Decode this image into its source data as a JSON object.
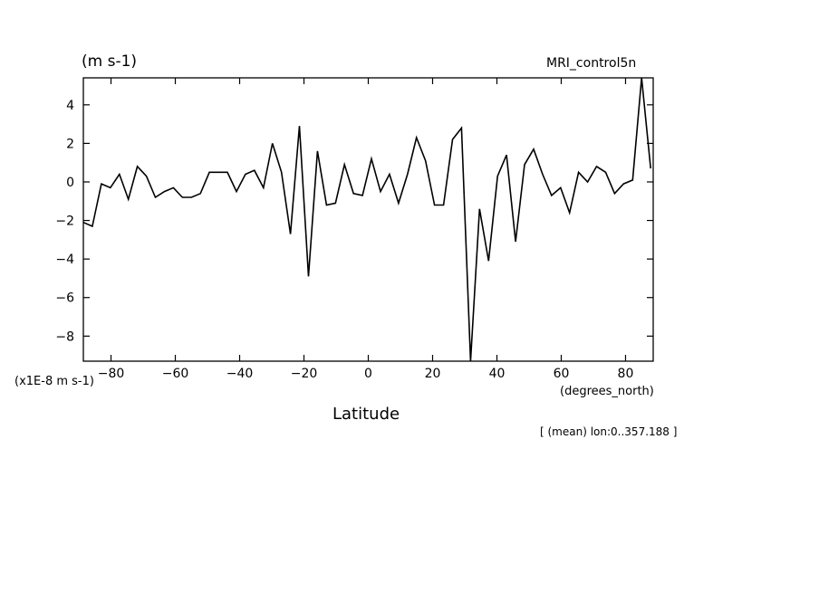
{
  "chart_data": {
    "type": "line",
    "title": "MRI_control5n",
    "ylabel": "(m s-1)",
    "yscale_note": "(x1E-8 m s-1)",
    "xlabel": "Latitude",
    "xunits": "(degrees_north)",
    "annotation": "[ (mean) lon:0..357.188 ]",
    "xlim": [
      -88.6,
      88.6
    ],
    "ylim": [
      -9.3,
      5.4
    ],
    "xticks": [
      -80,
      -60,
      -40,
      -20,
      0,
      20,
      40,
      60,
      80
    ],
    "yticks": [
      4,
      2,
      0,
      -2,
      -4,
      -6,
      -8
    ],
    "grid": false,
    "legend": "none",
    "line_color": "#000000",
    "series": [
      {
        "x": [
          -88.6,
          -85.8,
          -83.0,
          -80.2,
          -77.4,
          -74.6,
          -71.8,
          -69.0,
          -66.2,
          -63.4,
          -60.6,
          -57.8,
          -55.0,
          -52.2,
          -49.4,
          -46.6,
          -43.8,
          -41.0,
          -38.2,
          -35.4,
          -32.6,
          -29.8,
          -27.0,
          -24.2,
          -21.4,
          -18.6,
          -15.8,
          -13.0,
          -10.2,
          -7.4,
          -4.6,
          -1.8,
          1.0,
          3.8,
          6.6,
          9.4,
          12.2,
          15.0,
          17.8,
          20.6,
          23.4,
          26.2,
          29.0,
          31.8,
          34.6,
          37.4,
          40.2,
          43.0,
          45.8,
          48.6,
          51.4,
          54.2,
          57.0,
          59.8,
          62.6,
          65.4,
          68.2,
          71.0,
          73.8,
          76.6,
          79.4,
          82.2,
          85.0,
          87.8
        ],
        "values": [
          -2.1,
          -2.3,
          -0.1,
          -0.3,
          0.4,
          -0.9,
          0.8,
          0.3,
          -0.8,
          -0.5,
          -0.3,
          -0.8,
          -0.8,
          -0.6,
          0.5,
          0.5,
          0.5,
          -0.5,
          0.4,
          0.6,
          -0.3,
          2.0,
          0.5,
          -2.7,
          2.9,
          -4.9,
          1.6,
          -1.2,
          -1.1,
          0.9,
          -0.6,
          -0.7,
          1.2,
          -0.5,
          0.4,
          -1.1,
          0.4,
          2.3,
          1.1,
          -1.2,
          -1.2,
          2.2,
          2.8,
          -9.3,
          -1.4,
          -4.1,
          0.3,
          1.4,
          -3.1,
          0.9,
          1.7,
          0.4,
          -0.7,
          -0.3,
          -1.6,
          0.5,
          0.0,
          0.8,
          0.5,
          -0.6,
          -0.1,
          0.1,
          5.4,
          0.7
        ]
      }
    ]
  }
}
